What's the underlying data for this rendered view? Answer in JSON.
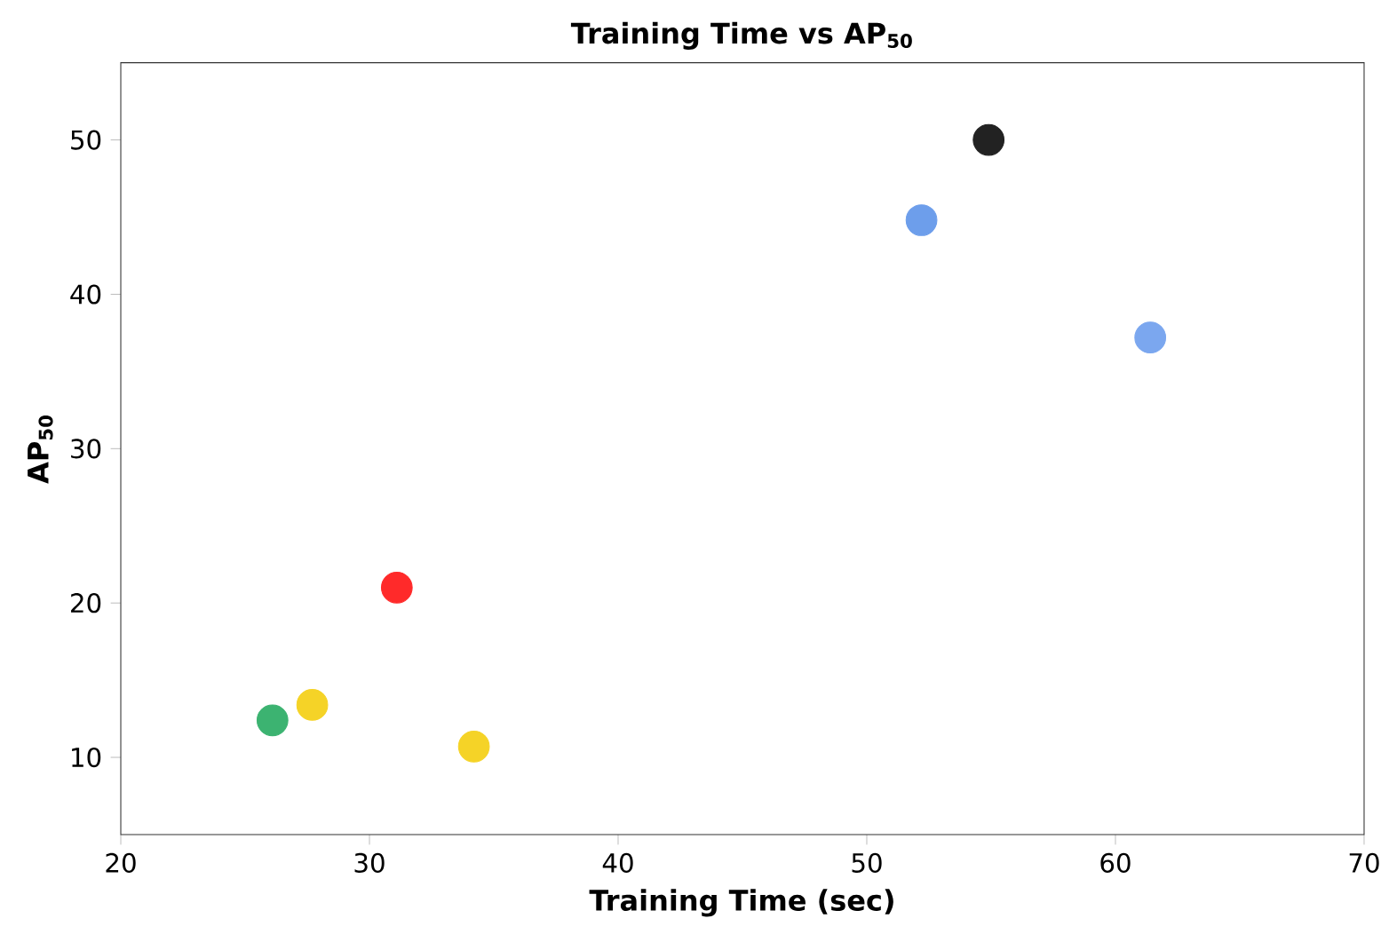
{
  "chart_data": {
    "type": "scatter",
    "title": "Training Time vs AP$_{50}$",
    "xlabel": "Training Time (sec)",
    "ylabel": "AP$_{50}$",
    "x": [
      26.1,
      27.7,
      31.1,
      34.2,
      52.2,
      54.9,
      61.4
    ],
    "values": [
      12.4,
      13.4,
      21.0,
      10.7,
      44.8,
      50.0,
      37.2
    ],
    "colors": [
      "#3cb371",
      "#f5d327",
      "#ff2a2a",
      "#f5d327",
      "#6d9eeb",
      "#222222",
      "#7ba7ef"
    ],
    "xlim": [
      20,
      70
    ],
    "ylim": [
      5,
      55
    ],
    "xticks": [
      20,
      30,
      40,
      50,
      60,
      70
    ],
    "yticks": [
      10,
      20,
      30,
      40,
      50
    ]
  }
}
